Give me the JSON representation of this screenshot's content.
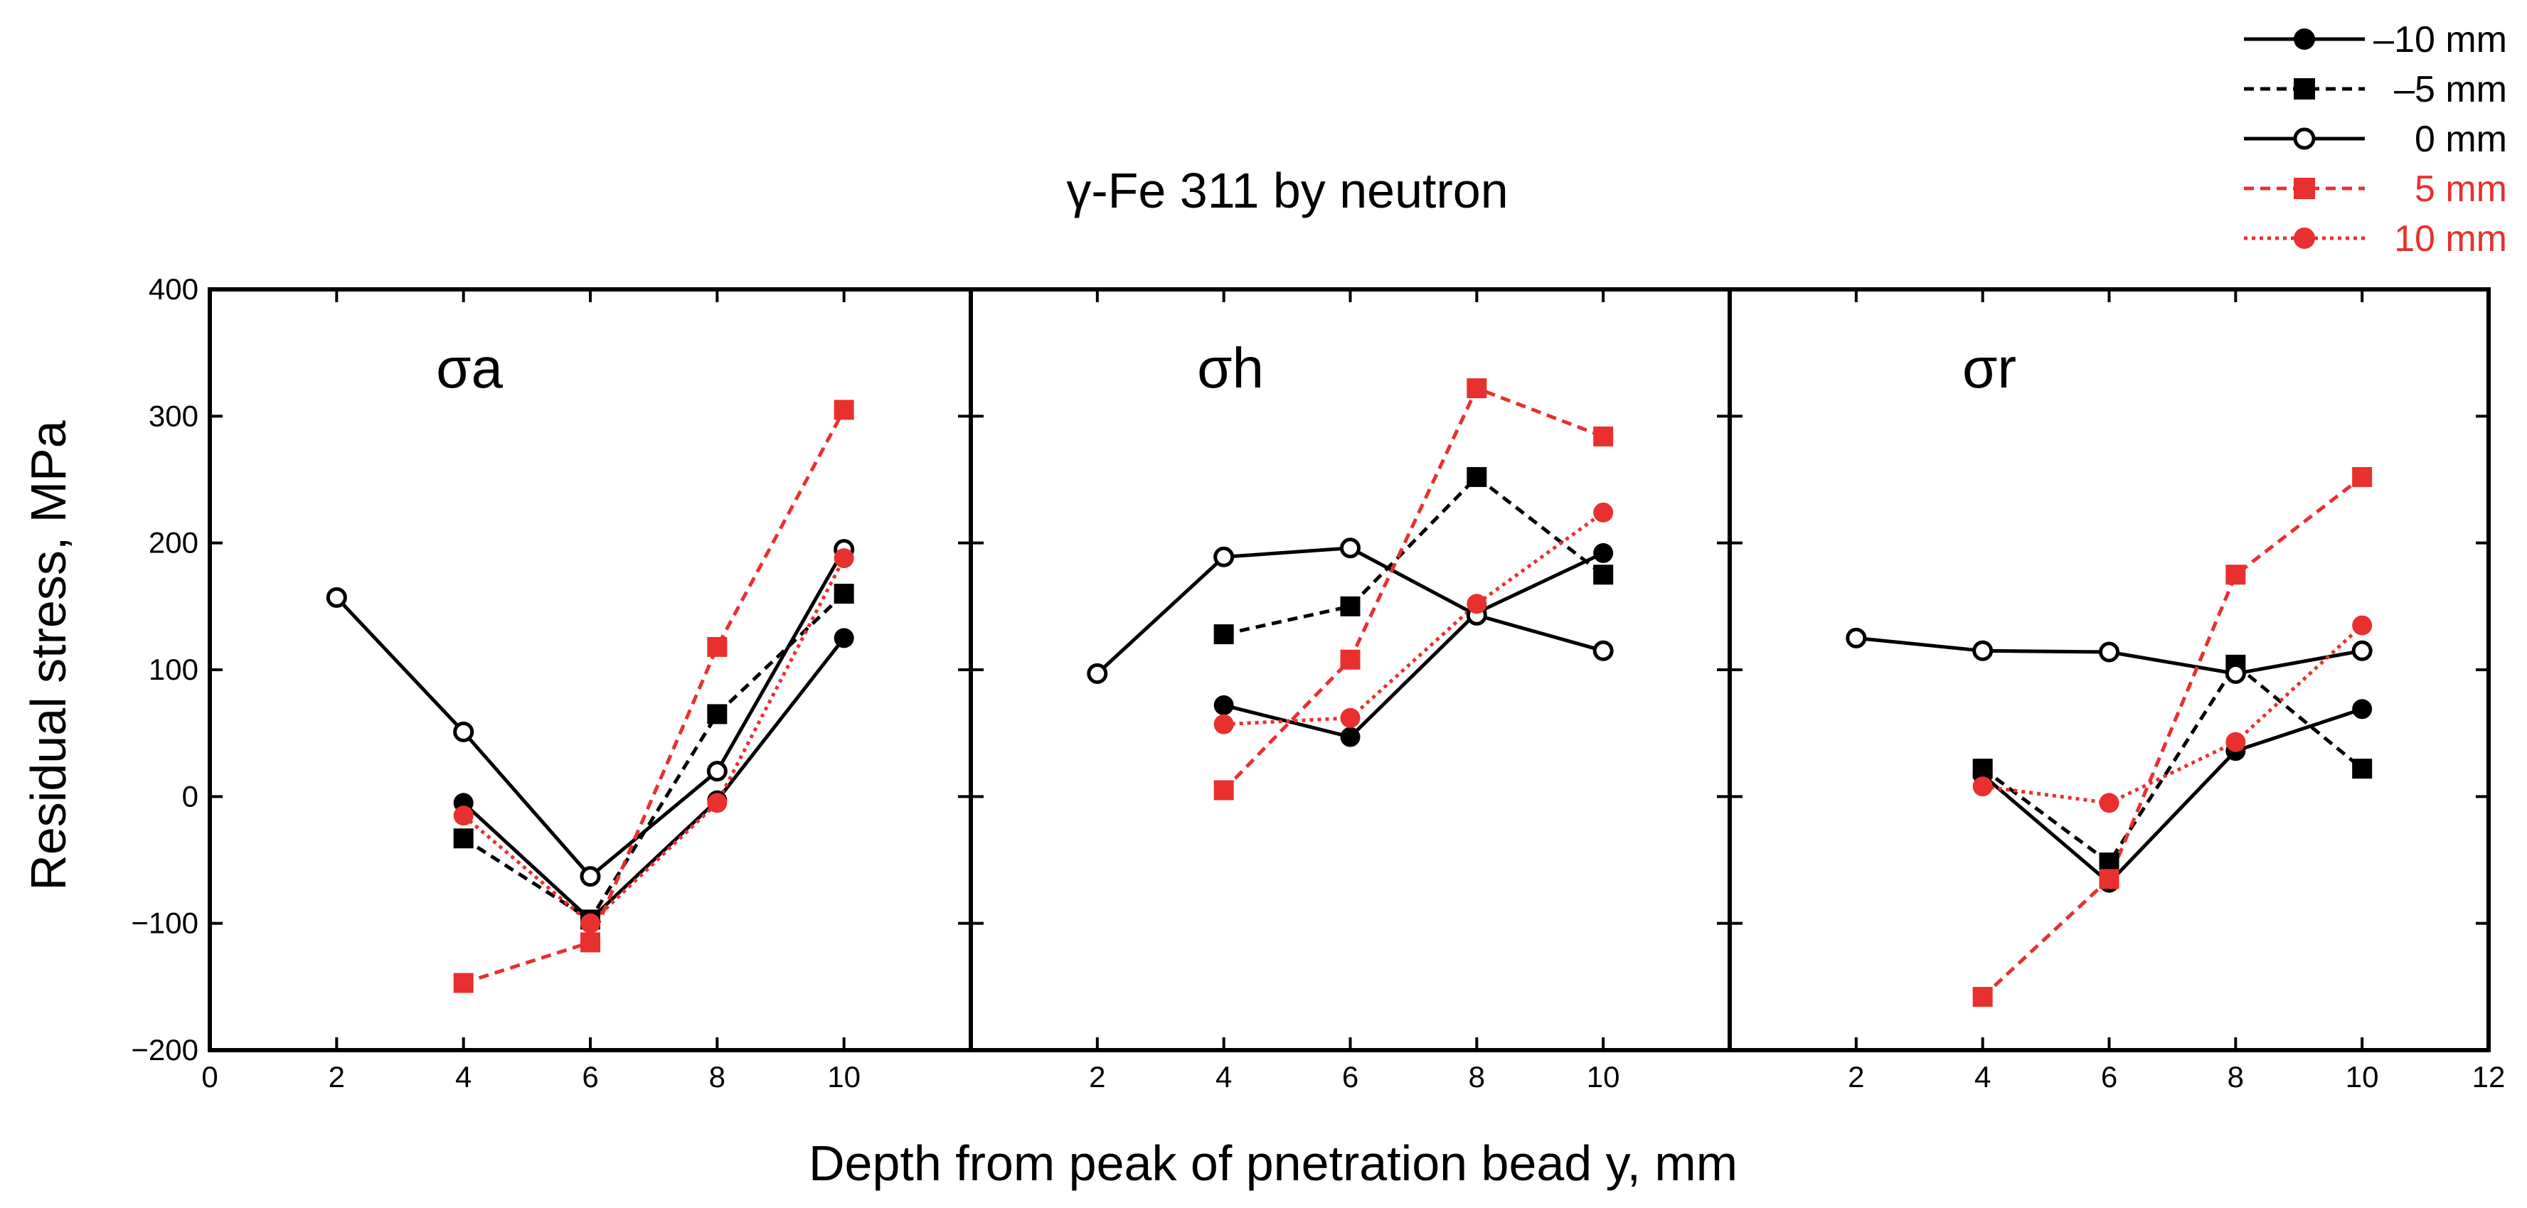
{
  "chart_data": {
    "type": "line",
    "title": "γ-Fe 311 by neutron",
    "xlabel": "Depth from peak of pnetration bead y, mm",
    "ylabel": "Residual stress, MPa",
    "ylim": [
      -200,
      400
    ],
    "y_ticks": [
      -200,
      -100,
      0,
      100,
      200,
      300,
      400
    ],
    "y_tick_labels": [
      "−200",
      "−100",
      "0",
      "100",
      "200",
      "300",
      "400"
    ],
    "x_tick_labels_axis": [
      "0",
      "2",
      "4",
      "6",
      "8",
      "10",
      "12"
    ],
    "grid": false,
    "legend_position": "top-right",
    "panels": [
      {
        "label": "σa",
        "xlim": [
          0,
          12
        ],
        "x_ticks": [
          0,
          2,
          4,
          6,
          8,
          10
        ],
        "series": [
          {
            "name": "–10 mm",
            "color": "#000000",
            "marker": "filled-circle",
            "line": "solid",
            "x": [
              4,
              6,
              8,
              10
            ],
            "y": [
              -5,
              -97,
              -3,
              125
            ]
          },
          {
            "name": "–5 mm",
            "color": "#000000",
            "marker": "filled-square",
            "line": "dashed",
            "x": [
              4,
              6,
              8,
              10
            ],
            "y": [
              -33,
              -97,
              65,
              160
            ]
          },
          {
            "name": "0 mm",
            "color": "#000000",
            "marker": "open-circle",
            "line": "solid",
            "x": [
              2,
              4,
              6,
              8,
              10
            ],
            "y": [
              157,
              51,
              -63,
              20,
              195
            ]
          },
          {
            "name": "5 mm",
            "color": "#e8302e",
            "marker": "filled-square",
            "line": "dashed",
            "x": [
              4,
              6,
              8,
              10
            ],
            "y": [
              -147,
              -115,
              118,
              305
            ]
          },
          {
            "name": "10 mm",
            "color": "#e8302e",
            "marker": "filled-circle",
            "line": "dotted",
            "x": [
              4,
              6,
              8,
              10
            ],
            "y": [
              -15,
              -100,
              -5,
              188
            ]
          }
        ]
      },
      {
        "label": "σh",
        "xlim": [
          0,
          12
        ],
        "x_ticks": [
          2,
          4,
          6,
          8,
          10
        ],
        "series": [
          {
            "name": "–10 mm",
            "color": "#000000",
            "marker": "filled-circle",
            "line": "solid",
            "x": [
              4,
              6,
              8,
              10
            ],
            "y": [
              72,
              47,
              145,
              192
            ]
          },
          {
            "name": "–5 mm",
            "color": "#000000",
            "marker": "filled-square",
            "line": "dashed",
            "x": [
              4,
              6,
              8,
              10
            ],
            "y": [
              128,
              150,
              252,
              175
            ]
          },
          {
            "name": "0 mm",
            "color": "#000000",
            "marker": "open-circle",
            "line": "solid",
            "x": [
              2,
              4,
              6,
              8,
              10
            ],
            "y": [
              97,
              189,
              196,
              143,
              115
            ]
          },
          {
            "name": "5 mm",
            "color": "#e8302e",
            "marker": "filled-square",
            "line": "dashed",
            "x": [
              4,
              6,
              8,
              10
            ],
            "y": [
              5,
              108,
              322,
              284
            ]
          },
          {
            "name": "10 mm",
            "color": "#e8302e",
            "marker": "filled-circle",
            "line": "dotted",
            "x": [
              4,
              6,
              8,
              10
            ],
            "y": [
              57,
              62,
              152,
              224
            ]
          }
        ]
      },
      {
        "label": "σr",
        "xlim": [
          0,
          12
        ],
        "x_ticks": [
          2,
          4,
          6,
          8,
          10,
          12
        ],
        "series": [
          {
            "name": "–10 mm",
            "color": "#000000",
            "marker": "filled-circle",
            "line": "solid",
            "x": [
              4,
              6,
              8,
              10
            ],
            "y": [
              17,
              -68,
              36,
              69
            ]
          },
          {
            "name": "–5 mm",
            "color": "#000000",
            "marker": "filled-square",
            "line": "dashed",
            "x": [
              4,
              6,
              8,
              10
            ],
            "y": [
              22,
              -52,
              104,
              22
            ]
          },
          {
            "name": "0 mm",
            "color": "#000000",
            "marker": "open-circle",
            "line": "solid",
            "x": [
              2,
              4,
              6,
              8,
              10
            ],
            "y": [
              125,
              115,
              114,
              97,
              115
            ]
          },
          {
            "name": "5 mm",
            "color": "#e8302e",
            "marker": "filled-square",
            "line": "dashed",
            "x": [
              4,
              6,
              8,
              10
            ],
            "y": [
              -158,
              -65,
              175,
              252
            ]
          },
          {
            "name": "10 mm",
            "color": "#e8302e",
            "marker": "filled-circle",
            "line": "dotted",
            "x": [
              4,
              6,
              8,
              10
            ],
            "y": [
              8,
              -5,
              43,
              135
            ]
          }
        ]
      }
    ],
    "legend": [
      {
        "name": "–10 mm",
        "color": "#000000",
        "marker": "filled-circle",
        "line": "solid"
      },
      {
        "name": "–5 mm",
        "color": "#000000",
        "marker": "filled-square",
        "line": "dashed"
      },
      {
        "name": "0 mm",
        "color": "#000000",
        "marker": "open-circle",
        "line": "solid"
      },
      {
        "name": "5 mm",
        "color": "#e8302e",
        "marker": "filled-square",
        "line": "dashed"
      },
      {
        "name": "10 mm",
        "color": "#e8302e",
        "marker": "filled-circle",
        "line": "dotted"
      }
    ]
  }
}
